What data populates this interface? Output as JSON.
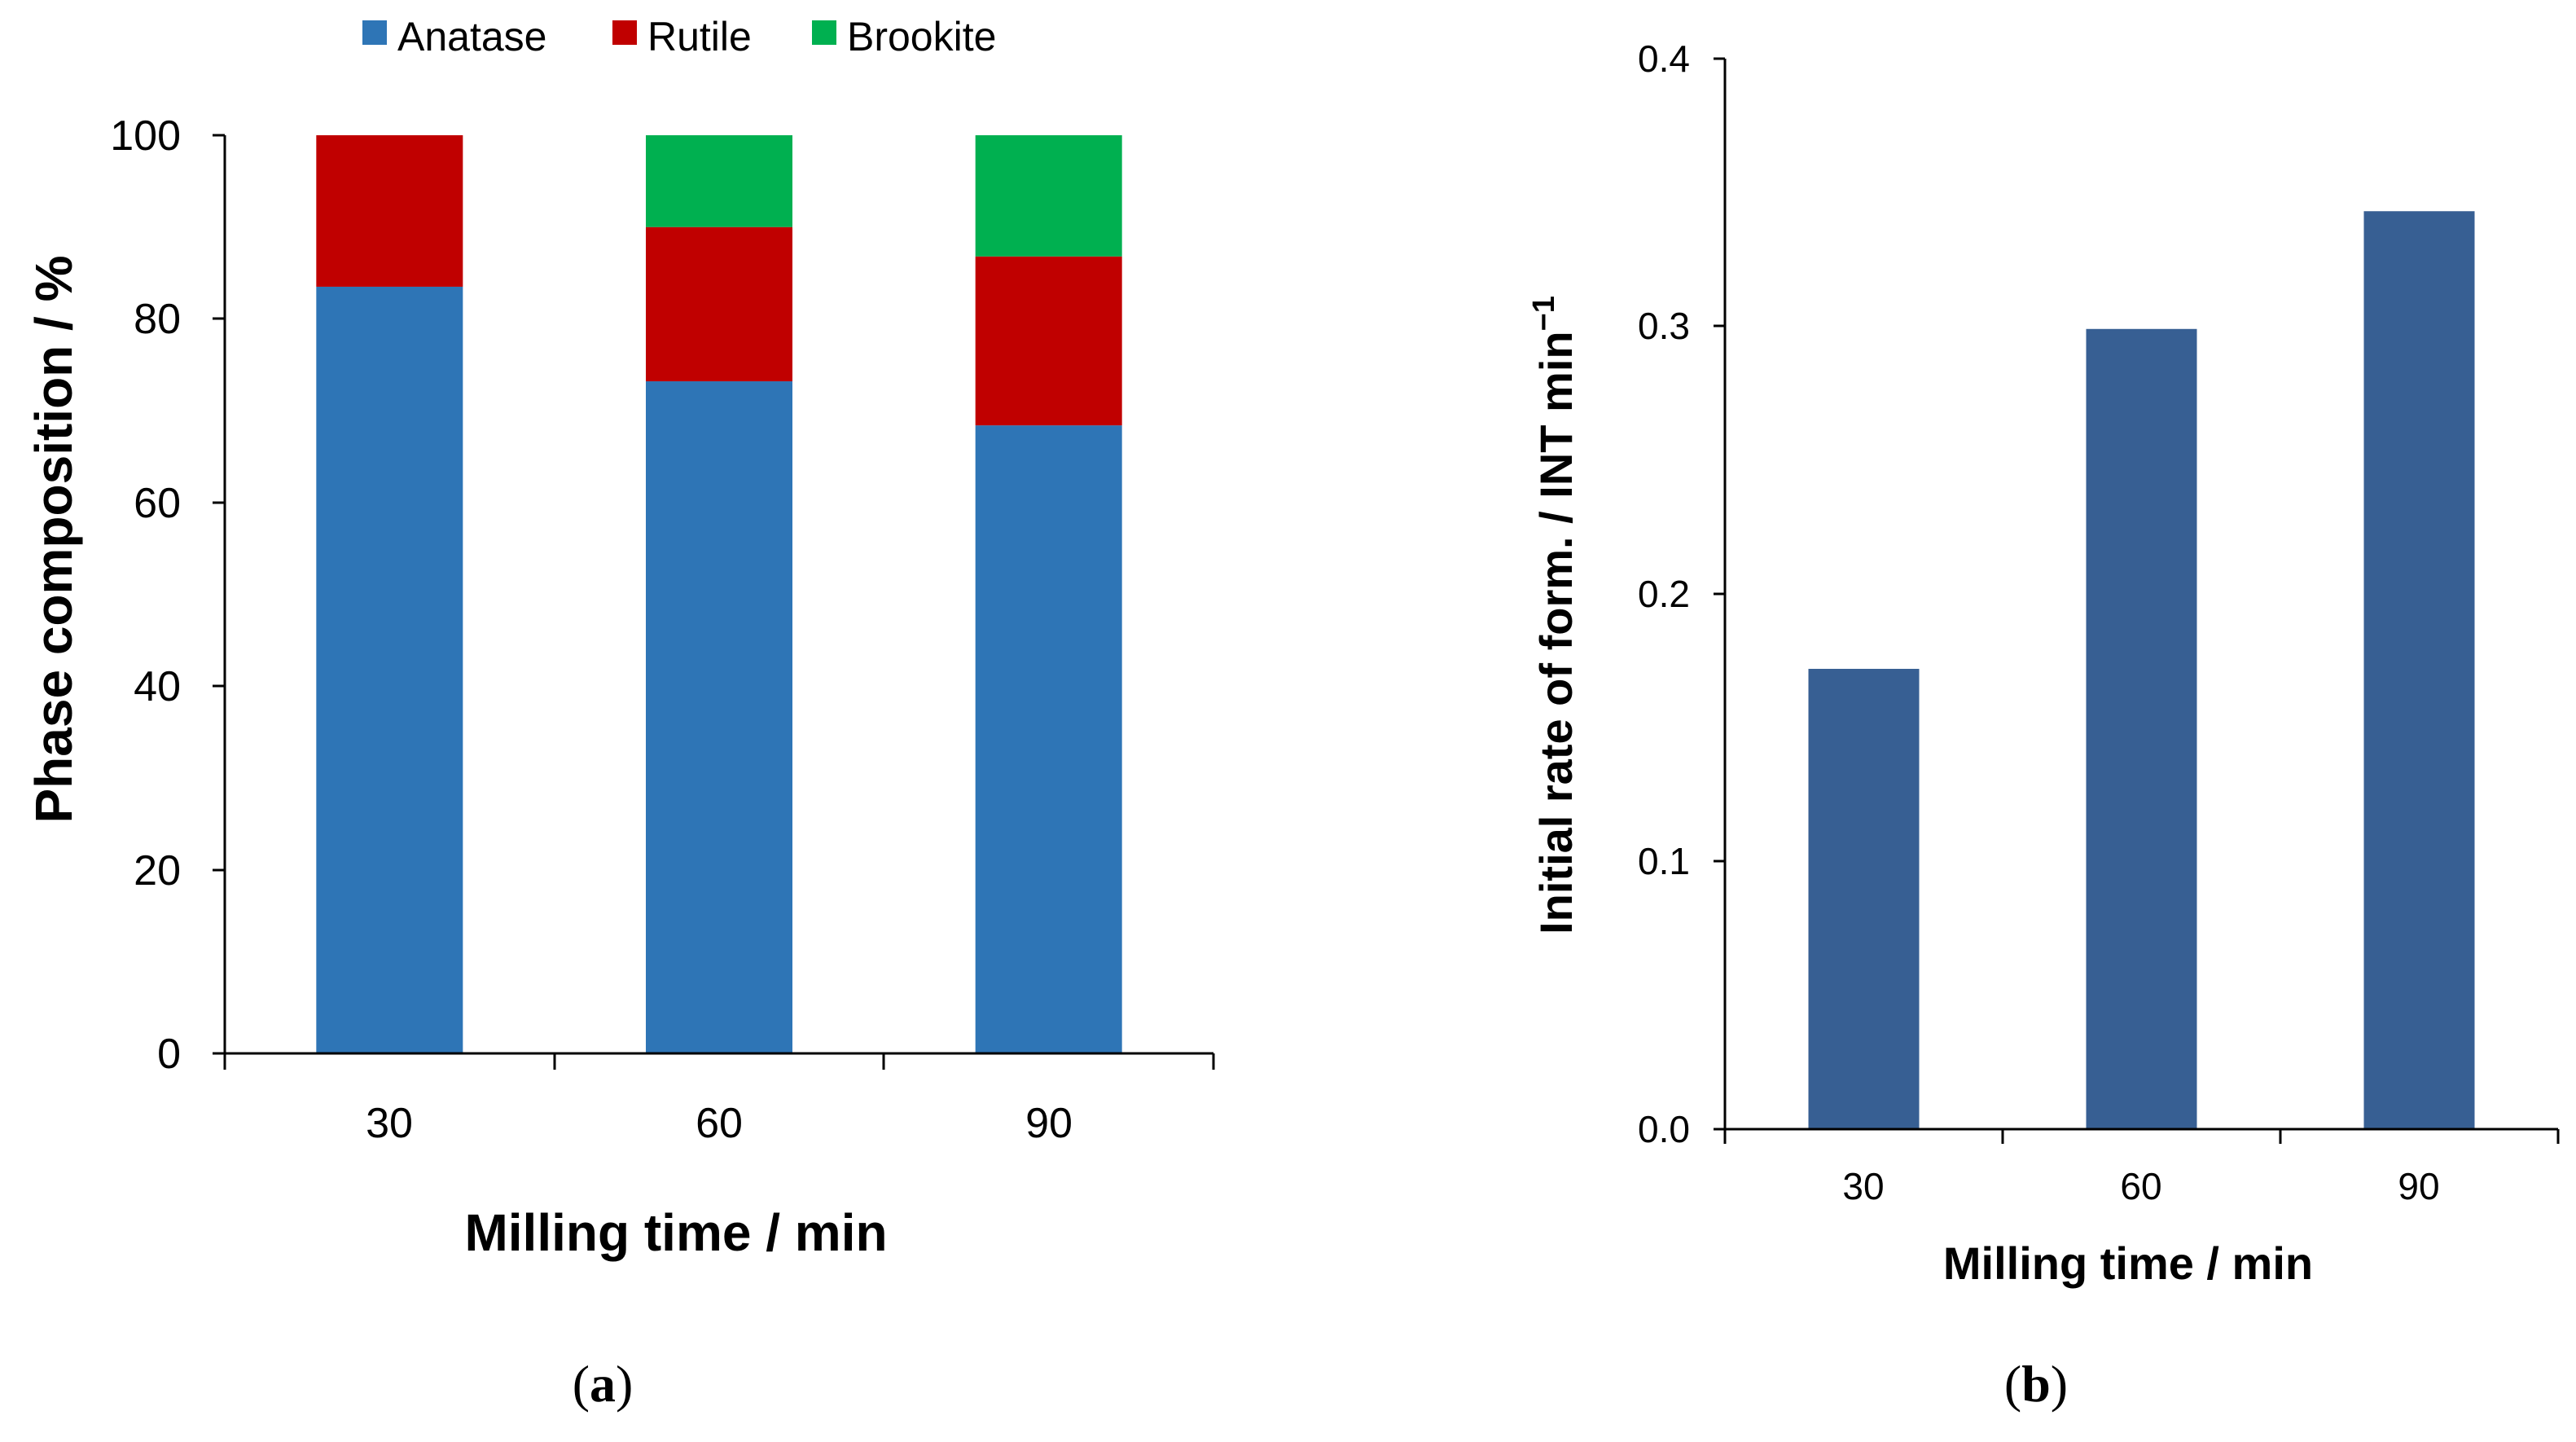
{
  "chart_data": [
    {
      "type": "bar",
      "stacked": true,
      "panel_label": "a",
      "categories": [
        "30",
        "60",
        "90"
      ],
      "series": [
        {
          "name": "Anatase",
          "color": "#2e75b6",
          "values": [
            83.5,
            73.2,
            68.4
          ]
        },
        {
          "name": "Rutile",
          "color": "#c00000",
          "values": [
            16.5,
            16.8,
            18.4
          ]
        },
        {
          "name": "Brookite",
          "color": "#00b050",
          "values": [
            0,
            10.0,
            13.2
          ]
        }
      ],
      "xlabel": "Milling time / min",
      "ylabel": "Phase composition / %",
      "ylim": [
        0,
        100
      ],
      "yticks": [
        "0",
        "20",
        "40",
        "60",
        "80",
        "100"
      ],
      "legend": "top"
    },
    {
      "type": "bar",
      "panel_label": "b",
      "categories": [
        "30",
        "60",
        "90"
      ],
      "values": [
        0.172,
        0.299,
        0.343
      ],
      "color": "#375f93",
      "xlabel": "Milling time / min",
      "ylabel": "Initial rate of form. / INT min",
      "ylabel_superscript": "−1",
      "ylim": [
        0,
        0.4
      ],
      "yticks": [
        "0.0",
        "0.1",
        "0.2",
        "0.3",
        "0.4"
      ]
    }
  ]
}
